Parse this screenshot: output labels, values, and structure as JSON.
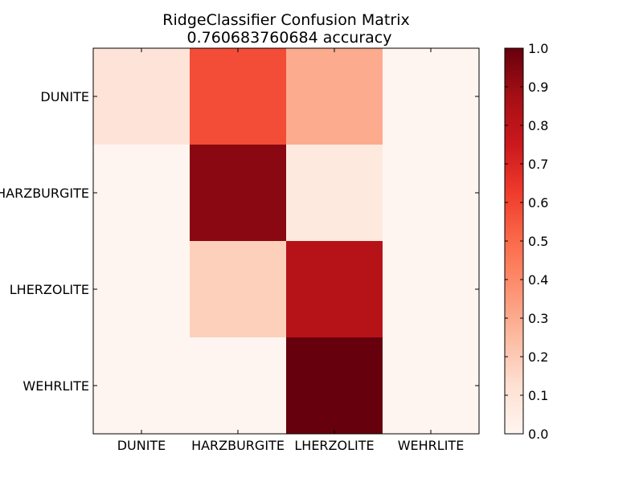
{
  "chart_data": {
    "type": "heatmap",
    "title": "RidgeClassifier Confusion Matrix",
    "subtitle": "0.760683760684 accuracy",
    "xlabel": "",
    "ylabel": "",
    "x_categories": [
      "DUNITE",
      "HARZBURGITE",
      "LHERZOLITE",
      "WEHRLITE"
    ],
    "y_categories": [
      "DUNITE",
      "HARZBURGITE",
      "LHERZOLITE",
      "WEHRLITE"
    ],
    "values": [
      [
        0.1,
        0.58,
        0.3,
        0.0
      ],
      [
        0.0,
        0.93,
        0.07,
        0.0
      ],
      [
        0.0,
        0.18,
        0.82,
        0.0
      ],
      [
        0.0,
        0.0,
        1.0,
        0.0
      ]
    ],
    "colormap": "Reds",
    "colorbar": {
      "range": [
        0.0,
        1.0
      ],
      "ticks": [
        "0.0",
        "0.1",
        "0.2",
        "0.3",
        "0.4",
        "0.5",
        "0.6",
        "0.7",
        "0.8",
        "0.9",
        "1.0"
      ]
    },
    "grid": false
  }
}
